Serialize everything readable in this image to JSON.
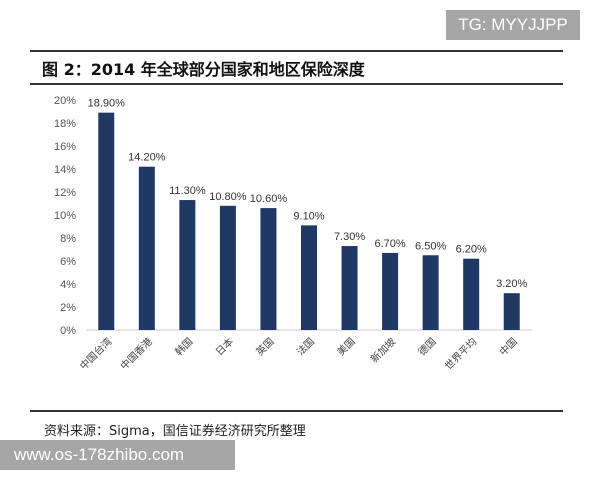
{
  "watermark_top": "TG: MYYJJPP",
  "watermark_bottom": "www.os-178zhibo.com",
  "source": "资料来源：Sigma，国信证券经济研究所整理",
  "chart_data": {
    "type": "bar",
    "title": "图 2：2014 年全球部分国家和地区保险深度",
    "categories": [
      "中国台湾",
      "中国香港",
      "韩国",
      "日本",
      "英国",
      "法国",
      "美国",
      "新加坡",
      "德国",
      "世界平均",
      "中国"
    ],
    "values": [
      18.9,
      14.2,
      11.3,
      10.8,
      10.6,
      9.1,
      7.3,
      6.7,
      6.5,
      6.2,
      3.2
    ],
    "data_labels": [
      "18.90%",
      "14.20%",
      "11.30%",
      "10.80%",
      "10.60%",
      "9.10%",
      "7.30%",
      "6.70%",
      "6.50%",
      "6.20%",
      "3.20%"
    ],
    "yticks": [
      "0%",
      "2%",
      "4%",
      "6%",
      "8%",
      "10%",
      "12%",
      "14%",
      "16%",
      "18%",
      "20%"
    ],
    "ylim": [
      0,
      20
    ],
    "grid": false,
    "bar_color": "#1f3864"
  }
}
